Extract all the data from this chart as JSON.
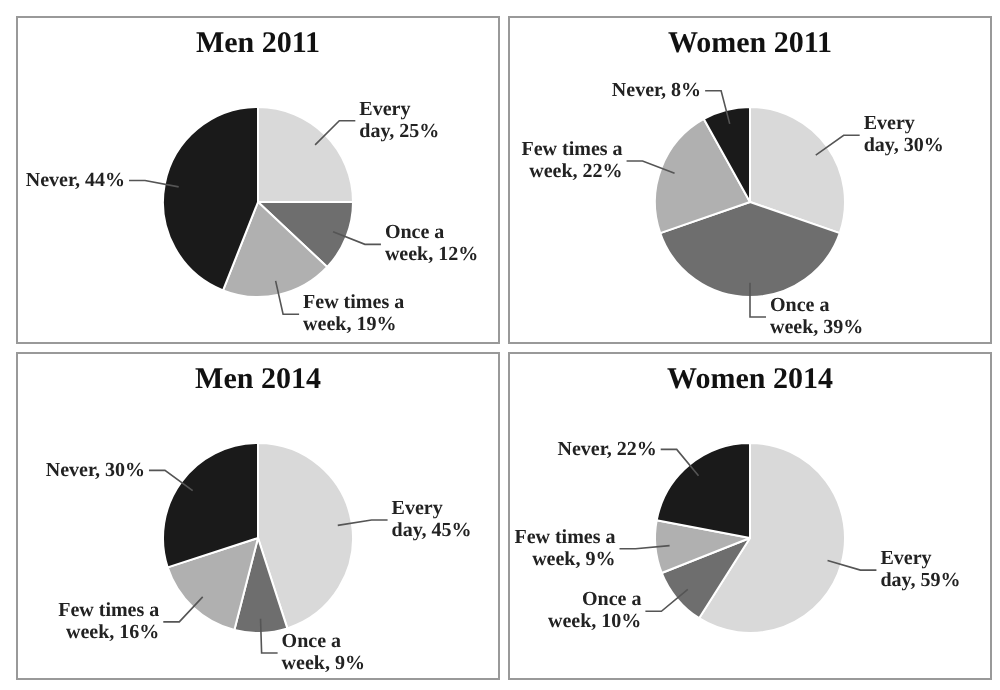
{
  "chart_data": [
    {
      "type": "pie",
      "title": "Men 2011",
      "categories": [
        "Every day",
        "Once a week",
        "Few times a week",
        "Never"
      ],
      "values": [
        25,
        12,
        19,
        44
      ],
      "value_labels": [
        "25%",
        "12%",
        "19%",
        "44%"
      ],
      "colors": [
        "#d9d9d9",
        "#6e6e6e",
        "#b0b0b0",
        "#1a1a1a"
      ],
      "legend": false
    },
    {
      "type": "pie",
      "title": "Women 2011",
      "categories": [
        "Every day",
        "Once a week",
        "Few times a week",
        "Never"
      ],
      "values": [
        30,
        39,
        22,
        8
      ],
      "value_labels": [
        "30%",
        "39%",
        "22%",
        "8%"
      ],
      "colors": [
        "#d9d9d9",
        "#6e6e6e",
        "#b0b0b0",
        "#1a1a1a"
      ],
      "legend": false
    },
    {
      "type": "pie",
      "title": "Men 2014",
      "categories": [
        "Every day",
        "Once a week",
        "Few times a week",
        "Never"
      ],
      "values": [
        45,
        9,
        16,
        30
      ],
      "value_labels": [
        "45%",
        "9%",
        "16%",
        "30%"
      ],
      "colors": [
        "#d9d9d9",
        "#6e6e6e",
        "#b0b0b0",
        "#1a1a1a"
      ],
      "legend": false
    },
    {
      "type": "pie",
      "title": "Women 2014",
      "categories": [
        "Every day",
        "Once a week",
        "Few times a week",
        "Never"
      ],
      "values": [
        59,
        10,
        9,
        22
      ],
      "value_labels": [
        "59%",
        "10%",
        "9%",
        "22%"
      ],
      "colors": [
        "#d9d9d9",
        "#6e6e6e",
        "#b0b0b0",
        "#1a1a1a"
      ],
      "legend": false
    }
  ]
}
